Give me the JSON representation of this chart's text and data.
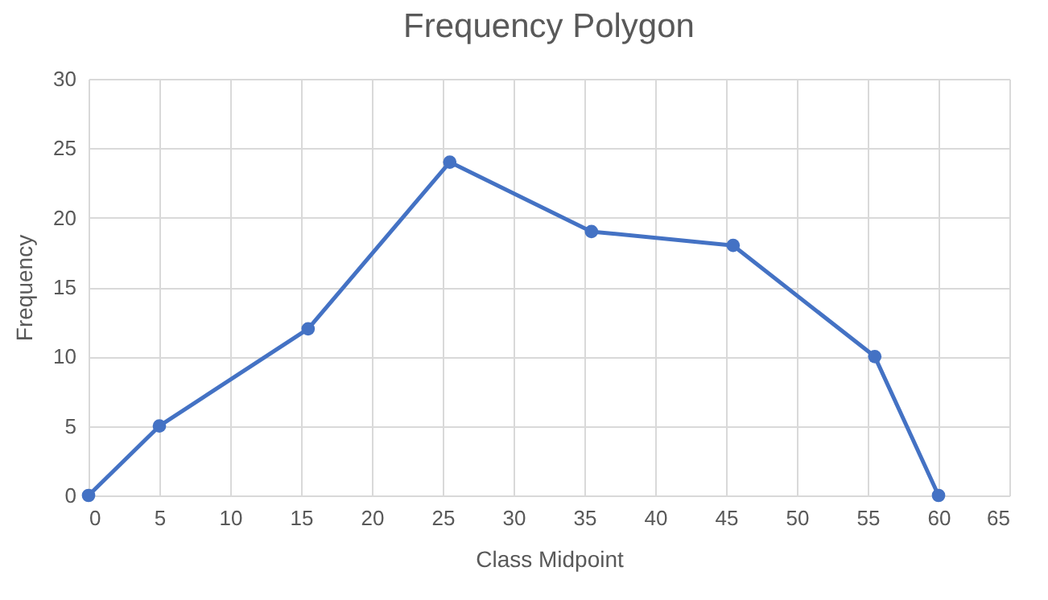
{
  "chart_data": {
    "type": "line",
    "title": "Frequency Polygon",
    "xlabel": "Class Midpoint",
    "ylabel": "Frequency",
    "x": [
      0,
      5,
      15.5,
      25.5,
      35.5,
      45.5,
      55.5,
      60
    ],
    "series": [
      {
        "color": "#4472c4",
        "values": [
          0,
          5,
          12,
          24,
          19,
          18,
          10,
          0
        ]
      }
    ],
    "xlim": [
      0,
      65
    ],
    "xticks": [
      0,
      5,
      10,
      15,
      20,
      25,
      30,
      35,
      40,
      45,
      50,
      55,
      60,
      65
    ],
    "ylim": [
      0,
      30
    ],
    "yticks": [
      0,
      5,
      10,
      15,
      20,
      25,
      30
    ],
    "grid": true,
    "marker": "circle",
    "line_style": "solid"
  }
}
